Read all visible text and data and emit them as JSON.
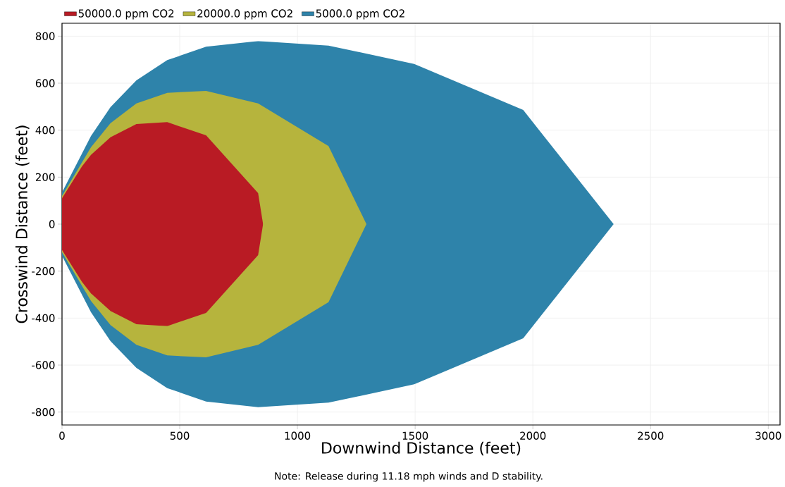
{
  "chart_data": {
    "type": "area",
    "xlabel": "Downwind Distance (feet)",
    "ylabel": "Crosswind Distance (feet)",
    "annotations": [
      "Note: Release during 11.18 mph winds and D stability."
    ],
    "xlim": [
      0,
      3050
    ],
    "ylim": [
      -855,
      855
    ],
    "xticks": [
      0,
      500,
      1000,
      1500,
      2000,
      2500,
      3000
    ],
    "yticks": [
      -800,
      -600,
      -400,
      -200,
      0,
      200,
      400,
      600,
      800
    ],
    "grid": true,
    "legend": "top left",
    "series": [
      {
        "name": "5000.0 ppm  CO2",
        "color": "#2e83aa",
        "x": [
          0,
          123,
          206,
          316,
          447,
          612,
          833,
          1132,
          1496,
          1959,
          2343,
          1959,
          1496,
          1132,
          833,
          612,
          447,
          316,
          206,
          123,
          0
        ],
        "values": [
          135,
          375,
          498,
          612,
          698,
          755,
          779,
          760,
          682,
          486,
          0,
          -486,
          -682,
          -760,
          -779,
          -755,
          -698,
          -612,
          -498,
          -375,
          -135
        ]
      },
      {
        "name": "20000.0 ppm  CO2",
        "color": "#b6b43d",
        "x": [
          0,
          123,
          206,
          316,
          447,
          612,
          833,
          1132,
          1293,
          1132,
          833,
          612,
          447,
          316,
          206,
          123,
          0
        ],
        "values": [
          120,
          327,
          430,
          514,
          559,
          567,
          514,
          332,
          0,
          -332,
          -514,
          -567,
          -559,
          -514,
          -430,
          -327,
          -120
        ]
      },
      {
        "name": "50000.0 ppm  CO2",
        "color": "#b91b24",
        "x": [
          0,
          85,
          123,
          206,
          316,
          447,
          612,
          833,
          854,
          833,
          612,
          447,
          316,
          206,
          123,
          85,
          0
        ],
        "values": [
          110,
          246,
          295,
          370,
          426,
          434,
          378,
          132,
          0,
          -132,
          -378,
          -434,
          -426,
          -370,
          -295,
          -246,
          -110
        ]
      }
    ]
  }
}
